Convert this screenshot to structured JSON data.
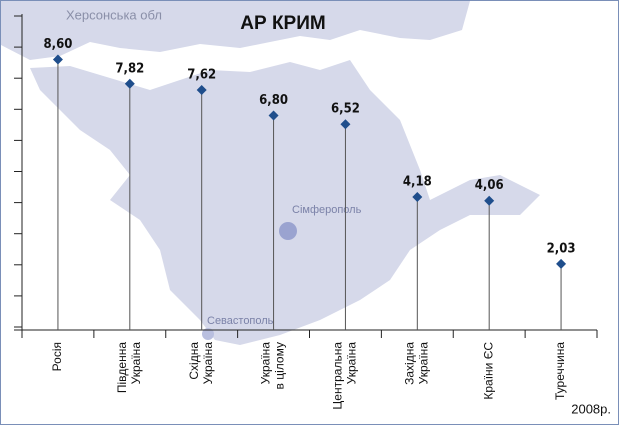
{
  "chart_data": {
    "type": "lollipop",
    "title": "АР КРИМ",
    "categories": [
      [
        "Росія"
      ],
      [
        "Південна",
        "Україна"
      ],
      [
        "Східна",
        "Україна"
      ],
      [
        "Україна",
        "в цілому"
      ],
      [
        "Центральна",
        "Україна"
      ],
      [
        "Західна",
        "Україна"
      ],
      [
        "Країни ЄС"
      ],
      [
        "Туреччина"
      ]
    ],
    "values": [
      8.6,
      7.82,
      7.62,
      6.8,
      6.52,
      4.18,
      4.06,
      2.03
    ],
    "value_labels": [
      "8,60",
      "7,82",
      "7,62",
      "6,80",
      "6,52",
      "4,18",
      "4,06",
      "2,03"
    ],
    "color": "#1f4e8c",
    "ylim": [
      0,
      10
    ],
    "yticks": [
      0,
      1,
      2,
      3,
      4,
      5,
      6,
      7,
      8,
      9,
      10
    ],
    "annotations": {
      "region": "Херсонська обл",
      "city1": "Сімферополь",
      "city2": "Севастополь",
      "year": "2008р."
    }
  }
}
